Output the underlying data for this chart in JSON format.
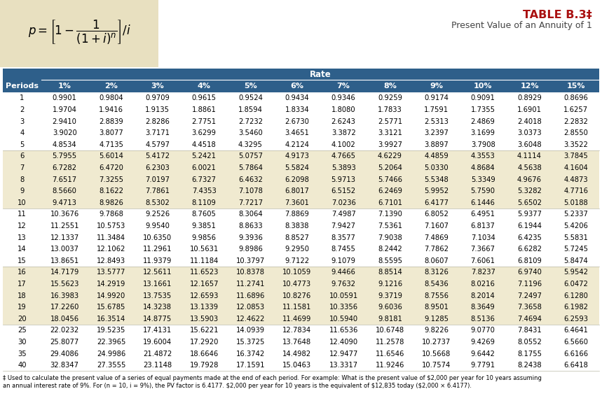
{
  "title": "TABLE B.3‡",
  "subtitle": "Present Value of an Annuity of 1",
  "rate_header": "Rate",
  "col_headers": [
    "Periods",
    "1%",
    "2%",
    "3%",
    "4%",
    "5%",
    "6%",
    "7%",
    "8%",
    "9%",
    "10%",
    "12%",
    "15%"
  ],
  "rows": [
    [
      1,
      0.9901,
      0.9804,
      0.9709,
      0.9615,
      0.9524,
      0.9434,
      0.9346,
      0.9259,
      0.9174,
      0.9091,
      0.8929,
      0.8696
    ],
    [
      2,
      1.9704,
      1.9416,
      1.9135,
      1.8861,
      1.8594,
      1.8334,
      1.808,
      1.7833,
      1.7591,
      1.7355,
      1.6901,
      1.6257
    ],
    [
      3,
      2.941,
      2.8839,
      2.8286,
      2.7751,
      2.7232,
      2.673,
      2.6243,
      2.5771,
      2.5313,
      2.4869,
      2.4018,
      2.2832
    ],
    [
      4,
      3.902,
      3.8077,
      3.7171,
      3.6299,
      3.546,
      3.4651,
      3.3872,
      3.3121,
      3.2397,
      3.1699,
      3.0373,
      2.855
    ],
    [
      5,
      4.8534,
      4.7135,
      4.5797,
      4.4518,
      4.3295,
      4.2124,
      4.1002,
      3.9927,
      3.8897,
      3.7908,
      3.6048,
      3.3522
    ],
    [
      6,
      5.7955,
      5.6014,
      5.4172,
      5.2421,
      5.0757,
      4.9173,
      4.7665,
      4.6229,
      4.4859,
      4.3553,
      4.1114,
      3.7845
    ],
    [
      7,
      6.7282,
      6.472,
      6.2303,
      6.0021,
      5.7864,
      5.5824,
      5.3893,
      5.2064,
      5.033,
      4.8684,
      4.5638,
      4.1604
    ],
    [
      8,
      7.6517,
      7.3255,
      7.0197,
      6.7327,
      6.4632,
      6.2098,
      5.9713,
      5.7466,
      5.5348,
      5.3349,
      4.9676,
      4.4873
    ],
    [
      9,
      8.566,
      8.1622,
      7.7861,
      7.4353,
      7.1078,
      6.8017,
      6.5152,
      6.2469,
      5.9952,
      5.759,
      5.3282,
      4.7716
    ],
    [
      10,
      9.4713,
      8.9826,
      8.5302,
      8.1109,
      7.7217,
      7.3601,
      7.0236,
      6.7101,
      6.4177,
      6.1446,
      5.6502,
      5.0188
    ],
    [
      11,
      10.3676,
      9.7868,
      9.2526,
      8.7605,
      8.3064,
      7.8869,
      7.4987,
      7.139,
      6.8052,
      6.4951,
      5.9377,
      5.2337
    ],
    [
      12,
      11.2551,
      10.5753,
      9.954,
      9.3851,
      8.8633,
      8.3838,
      7.9427,
      7.5361,
      7.1607,
      6.8137,
      6.1944,
      5.4206
    ],
    [
      13,
      12.1337,
      11.3484,
      10.635,
      9.9856,
      9.3936,
      8.8527,
      8.3577,
      7.9038,
      7.4869,
      7.1034,
      6.4235,
      5.5831
    ],
    [
      14,
      13.0037,
      12.1062,
      11.2961,
      10.5631,
      9.8986,
      9.295,
      8.7455,
      8.2442,
      7.7862,
      7.3667,
      6.6282,
      5.7245
    ],
    [
      15,
      13.8651,
      12.8493,
      11.9379,
      11.1184,
      10.3797,
      9.7122,
      9.1079,
      8.5595,
      8.0607,
      7.6061,
      6.8109,
      5.8474
    ],
    [
      16,
      14.7179,
      13.5777,
      12.5611,
      11.6523,
      10.8378,
      10.1059,
      9.4466,
      8.8514,
      8.3126,
      7.8237,
      6.974,
      5.9542
    ],
    [
      17,
      15.5623,
      14.2919,
      13.1661,
      12.1657,
      11.2741,
      10.4773,
      9.7632,
      9.1216,
      8.5436,
      8.0216,
      7.1196,
      6.0472
    ],
    [
      18,
      16.3983,
      14.992,
      13.7535,
      12.6593,
      11.6896,
      10.8276,
      10.0591,
      9.3719,
      8.7556,
      8.2014,
      7.2497,
      6.128
    ],
    [
      19,
      17.226,
      15.6785,
      14.3238,
      13.1339,
      12.0853,
      11.1581,
      10.3356,
      9.6036,
      8.9501,
      8.3649,
      7.3658,
      6.1982
    ],
    [
      20,
      18.0456,
      16.3514,
      14.8775,
      13.5903,
      12.4622,
      11.4699,
      10.594,
      9.8181,
      9.1285,
      8.5136,
      7.4694,
      6.2593
    ],
    [
      25,
      22.0232,
      19.5235,
      17.4131,
      15.6221,
      14.0939,
      12.7834,
      11.6536,
      10.6748,
      9.8226,
      9.077,
      7.8431,
      6.4641
    ],
    [
      30,
      25.8077,
      22.3965,
      19.6004,
      17.292,
      15.3725,
      13.7648,
      12.409,
      11.2578,
      10.2737,
      9.4269,
      8.0552,
      6.566
    ],
    [
      35,
      29.4086,
      24.9986,
      21.4872,
      18.6646,
      16.3742,
      14.4982,
      12.9477,
      11.6546,
      10.5668,
      9.6442,
      8.1755,
      6.6166
    ],
    [
      40,
      32.8347,
      27.3555,
      23.1148,
      19.7928,
      17.1591,
      15.0463,
      13.3317,
      11.9246,
      10.7574,
      9.7791,
      8.2438,
      6.6418
    ]
  ],
  "footnote1": "‡ Used to calculate the present value of a series of equal payments made at the end of each period. For example: What is the present value of $2,000 per year for 10 years assuming",
  "footnote2": "an annual interest rate of 9%. For (n = 10, i = 9%), the PV factor is 6.4177. $2,000 per year for 10 years is the equivalent of $12,835 today ($2,000 × 6.4177).",
  "header_bg": "#2E5F8A",
  "header_text": "#FFFFFF",
  "odd_row_bg": "#FFFFFF",
  "even_row_bg": "#F0EAD0",
  "formula_bg": "#E8E0C0",
  "title_color": "#AA1111",
  "subtitle_color": "#444444"
}
